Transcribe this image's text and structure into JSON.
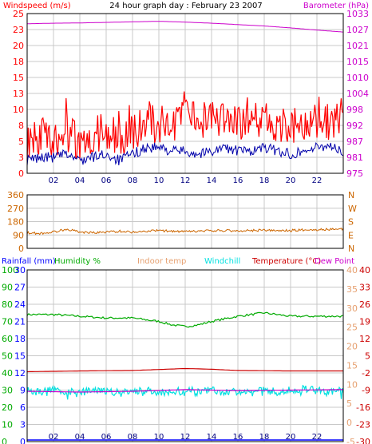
{
  "title": "24 hour graph day : February 23 2007",
  "colors": {
    "wind": "#ff0000",
    "wind_avg": "#0000aa",
    "baro": "#cc00cc",
    "dir": "#cc6600",
    "rain": "#0000ff",
    "hum": "#00aa00",
    "indoor": "#e6a070",
    "windchill": "#00e0e0",
    "temp": "#cc0000",
    "dew": "#cc00cc",
    "grid": "#c8c8c8",
    "xtick": "#000080"
  },
  "chart_data": [
    {
      "type": "line",
      "panel": "top",
      "left_axis_label": "Windspeed (m/s)",
      "right_axis_label": "Barometer (hPa)",
      "left_ticks": [
        "25",
        "23",
        "20",
        "18",
        "15",
        "13",
        "10",
        "8",
        "5",
        "3",
        "0"
      ],
      "right_ticks": [
        "1033",
        "1027",
        "1021",
        "1015",
        "1010",
        "1004",
        "998",
        "992",
        "987",
        "981",
        "975"
      ],
      "x_ticks": [
        "02",
        "04",
        "06",
        "08",
        "10",
        "12",
        "14",
        "16",
        "18",
        "20",
        "22"
      ],
      "xlim": [
        0,
        24
      ],
      "ylim": [
        0,
        25
      ],
      "ylim_right": [
        975,
        1033
      ],
      "series": [
        {
          "name": "Windspeed",
          "axis": "left",
          "x": [
            0,
            1,
            2,
            3,
            4,
            5,
            6,
            7,
            8,
            9,
            10,
            11,
            12,
            13,
            14,
            15,
            16,
            17,
            18,
            19,
            20,
            21,
            22,
            23,
            24
          ],
          "values": [
            5,
            6,
            5.5,
            6,
            5,
            6,
            6.5,
            5.5,
            6.5,
            8,
            7.5,
            8,
            8.5,
            8,
            8.5,
            9,
            8,
            8,
            8.5,
            7.5,
            7,
            7.5,
            8,
            8,
            9
          ]
        },
        {
          "name": "Windspeed average",
          "axis": "left",
          "x": [
            0,
            1,
            2,
            3,
            4,
            5,
            6,
            7,
            8,
            9,
            10,
            11,
            12,
            13,
            14,
            15,
            16,
            17,
            18,
            19,
            20,
            21,
            22,
            23,
            24
          ],
          "values": [
            2,
            2.5,
            2.5,
            3,
            2,
            2.5,
            3,
            2,
            3,
            4,
            4,
            3.5,
            3.5,
            3,
            3.5,
            4,
            3.5,
            3.5,
            4,
            3.5,
            3,
            3.5,
            4,
            4.5,
            3
          ]
        },
        {
          "name": "Barometer",
          "axis": "right",
          "x": [
            0,
            2,
            4,
            6,
            8,
            10,
            12,
            14,
            16,
            18,
            20,
            22,
            24
          ],
          "values": [
            1029.3,
            1029.5,
            1029.6,
            1029.8,
            1030,
            1030.2,
            1029.9,
            1029.5,
            1029,
            1028.5,
            1027.8,
            1027,
            1026.3
          ]
        }
      ]
    },
    {
      "type": "line",
      "panel": "direction",
      "left_ticks": [
        "360",
        "270",
        "180",
        "90",
        "0"
      ],
      "right_ticks": [
        "N",
        "W",
        "S",
        "E",
        "N"
      ],
      "xlim": [
        0,
        24
      ],
      "ylim": [
        0,
        360
      ],
      "series": [
        {
          "name": "Wind direction",
          "x": [
            0,
            1,
            2,
            3,
            4,
            5,
            6,
            7,
            8,
            9,
            10,
            11,
            12,
            13,
            14,
            15,
            16,
            17,
            18,
            19,
            20,
            21,
            22,
            23,
            24
          ],
          "values": [
            105,
            100,
            110,
            130,
            110,
            105,
            110,
            115,
            110,
            115,
            120,
            115,
            112,
            115,
            118,
            120,
            118,
            120,
            122,
            118,
            120,
            125,
            125,
            128,
            130
          ]
        }
      ]
    },
    {
      "type": "line",
      "panel": "bottom",
      "legend": [
        "Rainfall (mm)",
        "Humidity %",
        "Indoor temp",
        "Windchill",
        "Temperature (°C)",
        "Dew Point"
      ],
      "humidity_ticks": [
        "100",
        "90",
        "80",
        "70",
        "60",
        "50",
        "40",
        "30",
        "20",
        "10",
        "0"
      ],
      "rain_ticks": [
        "30",
        "27",
        "24",
        "21",
        "18",
        "15",
        "12",
        "9",
        "6",
        "3",
        "0"
      ],
      "indoor_ticks": [
        "40",
        "35",
        "30",
        "25",
        "20",
        "15",
        "10",
        "5",
        "0",
        "-5"
      ],
      "temp_ticks": [
        "40",
        "33",
        "26",
        "19",
        "12",
        "5",
        "-2",
        "-9",
        "-16",
        "-23",
        "-30"
      ],
      "x_ticks": [
        "02",
        "04",
        "06",
        "08",
        "10",
        "12",
        "14",
        "16",
        "18",
        "20",
        "22"
      ],
      "xlim": [
        0,
        24
      ],
      "ylim": [
        0,
        100
      ],
      "ylim_temp": [
        -30,
        40
      ],
      "series": [
        {
          "name": "Humidity",
          "axis": "humidity",
          "x": [
            0,
            2,
            4,
            6,
            8,
            10,
            11,
            12,
            13,
            14,
            16,
            18,
            20,
            22,
            24
          ],
          "values": [
            74,
            74,
            73,
            72,
            72,
            70,
            68,
            67,
            68,
            70,
            73,
            75,
            73,
            73,
            73
          ]
        },
        {
          "name": "Temperature",
          "axis": "temp",
          "x": [
            0,
            4,
            8,
            12,
            14,
            16,
            20,
            24
          ],
          "values": [
            -1.5,
            -1.2,
            -1.0,
            -0.2,
            -0.5,
            -1.0,
            -1.2,
            -1.2
          ]
        },
        {
          "name": "Dew Point",
          "axis": "temp",
          "x": [
            0,
            4,
            8,
            12,
            16,
            20,
            24
          ],
          "values": [
            -9.5,
            -9.8,
            -9.5,
            -8.8,
            -9.2,
            -9.0,
            -8.8
          ]
        },
        {
          "name": "Windchill",
          "axis": "temp",
          "x": [
            0,
            1,
            2,
            3,
            4,
            5,
            6,
            7,
            8,
            9,
            10,
            11,
            12,
            13,
            14,
            15,
            16,
            17,
            18,
            19,
            20,
            21,
            22,
            23,
            24
          ],
          "values": [
            -9,
            -10,
            -8.5,
            -9.5,
            -10,
            -9,
            -9.5,
            -10,
            -9.5,
            -9,
            -10,
            -9.5,
            -9,
            -9.5,
            -9,
            -10,
            -9.5,
            -9,
            -8.5,
            -9.5,
            -9,
            -8.5,
            -9,
            -9.5,
            -9
          ]
        },
        {
          "name": "Rainfall",
          "axis": "rain",
          "x": [
            0,
            24
          ],
          "values": [
            0,
            0
          ]
        }
      ]
    }
  ]
}
